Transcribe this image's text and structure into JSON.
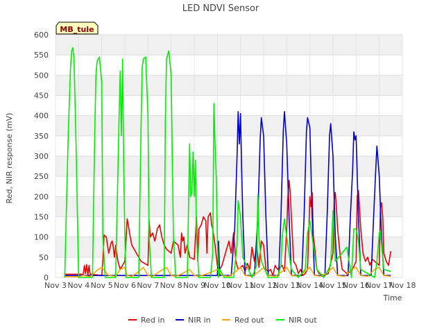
{
  "chart_data": {
    "type": "line",
    "title": "LED NDVI Sensor",
    "xlabel": "Time",
    "ylabel": "Red, NIR response (mV)",
    "site_tag": "MB_tule",
    "xlim": [
      3,
      18
    ],
    "ylim": [
      0,
      600
    ],
    "x_ticks": [
      {
        "v": 3,
        "label": "Nov 3"
      },
      {
        "v": 4,
        "label": "Nov 4"
      },
      {
        "v": 5,
        "label": "Nov 5"
      },
      {
        "v": 6,
        "label": "Nov 6"
      },
      {
        "v": 7,
        "label": "Nov 7"
      },
      {
        "v": 8,
        "label": "Nov 8"
      },
      {
        "v": 9,
        "label": "Nov 9"
      },
      {
        "v": 10,
        "label": "Nov 10"
      },
      {
        "v": 11,
        "label": "Nov 11"
      },
      {
        "v": 12,
        "label": "Nov 12"
      },
      {
        "v": 13,
        "label": "Nov 13"
      },
      {
        "v": 14,
        "label": "Nov 14"
      },
      {
        "v": 15,
        "label": "Nov 15"
      },
      {
        "v": 16,
        "label": "Nov 16"
      },
      {
        "v": 17,
        "label": "Nov 17"
      },
      {
        "v": 18,
        "label": "Nov 18"
      }
    ],
    "y_ticks": [
      0,
      50,
      100,
      150,
      200,
      250,
      300,
      350,
      400,
      450,
      500,
      550,
      600
    ],
    "grid": true,
    "legend_position": "bottom",
    "series": [
      {
        "name": "Red in",
        "color": "#ee0000",
        "x": [
          3.4,
          4.2,
          4.25,
          4.3,
          4.35,
          4.4,
          4.45,
          4.5,
          5.0,
          5.05,
          5.1,
          5.2,
          5.3,
          5.4,
          5.45,
          5.5,
          5.55,
          5.6,
          5.7,
          5.8,
          6.0,
          6.1,
          6.15,
          6.2,
          6.3,
          6.45,
          6.6,
          6.7,
          7.0,
          7.05,
          7.1,
          7.2,
          7.3,
          7.4,
          7.5,
          7.6,
          7.7,
          7.8,
          8.0,
          8.1,
          8.2,
          8.3,
          8.4,
          8.45,
          8.5,
          8.55,
          8.6,
          8.7,
          8.8,
          9.0,
          9.1,
          9.15,
          9.2,
          9.3,
          9.4,
          9.5,
          9.55,
          9.6,
          9.7,
          9.75,
          9.8,
          9.85,
          9.9,
          10.0,
          10.1,
          10.2,
          10.3,
          10.5,
          10.6,
          10.7,
          10.8,
          10.9,
          11.0,
          11.1,
          11.2,
          11.3,
          11.4,
          11.5,
          11.6,
          11.7,
          11.8,
          11.9,
          12.0,
          12.1,
          12.2,
          12.3,
          12.4,
          12.5,
          12.6,
          12.7,
          12.8,
          12.9,
          13.0,
          13.05,
          13.1,
          13.15,
          13.2,
          13.3,
          13.4,
          13.5,
          13.6,
          13.7,
          13.8,
          13.9,
          14.0,
          14.05,
          14.1,
          14.15,
          14.2,
          14.3,
          14.4,
          14.6,
          14.8,
          15.0,
          15.05,
          15.1,
          15.15,
          15.2,
          15.3,
          15.4,
          15.6,
          15.8,
          16.0,
          16.05,
          16.1,
          16.15,
          16.2,
          16.3,
          16.4,
          16.5,
          16.6,
          16.7,
          16.8,
          17.0,
          17.05,
          17.1,
          17.15,
          17.2,
          17.3,
          17.4,
          17.5
        ],
        "y": [
          8,
          8,
          30,
          10,
          32,
          5,
          30,
          8,
          5,
          40,
          105,
          100,
          60,
          85,
          90,
          75,
          50,
          80,
          40,
          20,
          40,
          145,
          130,
          110,
          80,
          65,
          50,
          40,
          30,
          140,
          100,
          110,
          90,
          120,
          130,
          100,
          80,
          70,
          60,
          90,
          85,
          80,
          50,
          110,
          90,
          100,
          60,
          80,
          50,
          45,
          150,
          40,
          120,
          130,
          150,
          140,
          60,
          150,
          160,
          130,
          120,
          100,
          80,
          30,
          20,
          30,
          50,
          90,
          60,
          110,
          40,
          20,
          25,
          30,
          15,
          35,
          20,
          75,
          40,
          80,
          25,
          90,
          80,
          20,
          15,
          20,
          5,
          30,
          20,
          25,
          30,
          15,
          120,
          200,
          240,
          210,
          150,
          40,
          30,
          10,
          20,
          5,
          10,
          20,
          200,
          175,
          210,
          100,
          80,
          20,
          10,
          5,
          10,
          60,
          190,
          210,
          170,
          120,
          60,
          20,
          10,
          15,
          40,
          200,
          215,
          170,
          120,
          60,
          40,
          50,
          30,
          45,
          40,
          30,
          170,
          185,
          150,
          60,
          40,
          30,
          65
        ]
      },
      {
        "name": "NIR in",
        "color": "#0000cc",
        "x": [
          3.4,
          5.0,
          6.0,
          7.0,
          8.0,
          9.0,
          9.9,
          10.0,
          10.05,
          10.1,
          10.2,
          10.3,
          10.6,
          10.75,
          10.85,
          10.9,
          10.95,
          11.0,
          11.05,
          11.1,
          11.2,
          11.5,
          11.6,
          11.75,
          11.85,
          11.9,
          12.0,
          12.1,
          12.2,
          12.5,
          12.65,
          12.75,
          12.85,
          12.9,
          13.0,
          13.1,
          13.2,
          13.5,
          13.65,
          13.75,
          13.85,
          13.9,
          14.0,
          14.1,
          14.2,
          14.5,
          14.65,
          14.75,
          14.85,
          14.9,
          15.0,
          15.1,
          15.2,
          15.5,
          15.65,
          15.75,
          15.85,
          15.9,
          15.95,
          16.0,
          16.1,
          16.2,
          16.5,
          16.65,
          16.75,
          16.85,
          16.9,
          17.0,
          17.1,
          17.2,
          17.5
        ],
        "y": [
          5,
          5,
          5,
          5,
          5,
          5,
          5,
          5,
          90,
          5,
          5,
          5,
          5,
          120,
          300,
          410,
          330,
          405,
          270,
          150,
          5,
          5,
          5,
          150,
          340,
          395,
          350,
          150,
          5,
          5,
          5,
          150,
          360,
          410,
          330,
          150,
          5,
          5,
          5,
          150,
          360,
          395,
          370,
          150,
          5,
          5,
          5,
          160,
          350,
          380,
          300,
          100,
          5,
          5,
          5,
          150,
          265,
          360,
          340,
          350,
          150,
          5,
          5,
          5,
          140,
          270,
          325,
          250,
          100,
          5,
          5
        ]
      },
      {
        "name": "Red out",
        "color": "#ffa500",
        "x": [
          3.4,
          4.0,
          4.2,
          4.5,
          4.8,
          5.0,
          5.3,
          5.6,
          5.8,
          6.0,
          6.1,
          6.3,
          6.6,
          6.8,
          7.0,
          7.2,
          7.5,
          7.8,
          8.0,
          8.2,
          8.5,
          8.8,
          9.0,
          9.2,
          9.5,
          9.8,
          10.0,
          10.2,
          10.5,
          10.8,
          11.0,
          11.2,
          11.5,
          11.8,
          12.0,
          12.2,
          12.5,
          12.8,
          13.0,
          13.2,
          13.5,
          13.8,
          14.0,
          14.2,
          14.5,
          14.8,
          15.0,
          15.2,
          15.5,
          15.8,
          16.0,
          16.2,
          16.5,
          16.8,
          17.0,
          17.2,
          17.5
        ],
        "y": [
          2,
          2,
          5,
          2,
          18,
          25,
          5,
          3,
          20,
          25,
          5,
          3,
          15,
          25,
          5,
          3,
          15,
          25,
          5,
          3,
          10,
          20,
          5,
          3,
          8,
          15,
          20,
          5,
          3,
          15,
          25,
          5,
          3,
          15,
          25,
          5,
          3,
          15,
          25,
          5,
          3,
          15,
          25,
          5,
          3,
          15,
          25,
          5,
          3,
          20,
          25,
          5,
          3,
          20,
          25,
          5,
          3
        ]
      },
      {
        "name": "NIR out",
        "color": "#00ee00",
        "x": [
          3.4,
          3.55,
          3.65,
          3.7,
          3.75,
          3.8,
          3.9,
          4.0,
          4.1,
          4.3,
          4.6,
          4.7,
          4.75,
          4.8,
          4.9,
          5.0,
          5.05,
          5.15,
          5.4,
          5.6,
          5.75,
          5.8,
          5.85,
          5.9,
          5.95,
          6.0,
          6.05,
          6.15,
          6.3,
          6.6,
          6.7,
          6.75,
          6.8,
          6.9,
          7.0,
          7.05,
          7.15,
          7.4,
          7.7,
          7.75,
          7.8,
          7.9,
          8.0,
          8.1,
          8.2,
          8.4,
          8.7,
          8.8,
          8.85,
          8.9,
          8.95,
          9.0,
          9.05,
          9.1,
          9.2,
          9.7,
          9.8,
          9.85,
          9.9,
          9.95,
          10.0,
          10.05,
          10.1,
          10.3,
          10.7,
          10.85,
          10.9,
          11.0,
          11.1,
          11.5,
          11.7,
          11.75,
          11.8,
          11.9,
          12.2,
          12.6,
          12.75,
          12.8,
          12.9,
          13.0,
          13.2,
          13.5,
          13.8,
          13.9,
          14.0,
          14.1,
          14.3,
          14.6,
          14.9,
          15.0,
          15.1,
          15.6,
          15.8,
          15.9,
          16.0,
          16.1,
          16.2,
          16.8,
          16.9,
          17.0,
          17.05,
          17.1,
          17.2,
          17.5
        ],
        "y": [
          0,
          350,
          520,
          560,
          568,
          540,
          300,
          0,
          0,
          0,
          0,
          370,
          500,
          535,
          545,
          480,
          100,
          0,
          0,
          0,
          400,
          510,
          350,
          540,
          280,
          100,
          0,
          0,
          0,
          0,
          370,
          520,
          540,
          545,
          400,
          100,
          0,
          0,
          0,
          380,
          540,
          560,
          500,
          100,
          0,
          0,
          0,
          330,
          200,
          210,
          310,
          200,
          290,
          100,
          0,
          0,
          60,
          430,
          330,
          250,
          100,
          0,
          20,
          0,
          0,
          80,
          190,
          150,
          50,
          0,
          30,
          205,
          100,
          40,
          0,
          0,
          30,
          100,
          145,
          100,
          20,
          0,
          20,
          110,
          140,
          100,
          20,
          0,
          30,
          165,
          40,
          75,
          0,
          120,
          120,
          90,
          20,
          0,
          40,
          110,
          115,
          80,
          20,
          15
        ]
      }
    ]
  }
}
